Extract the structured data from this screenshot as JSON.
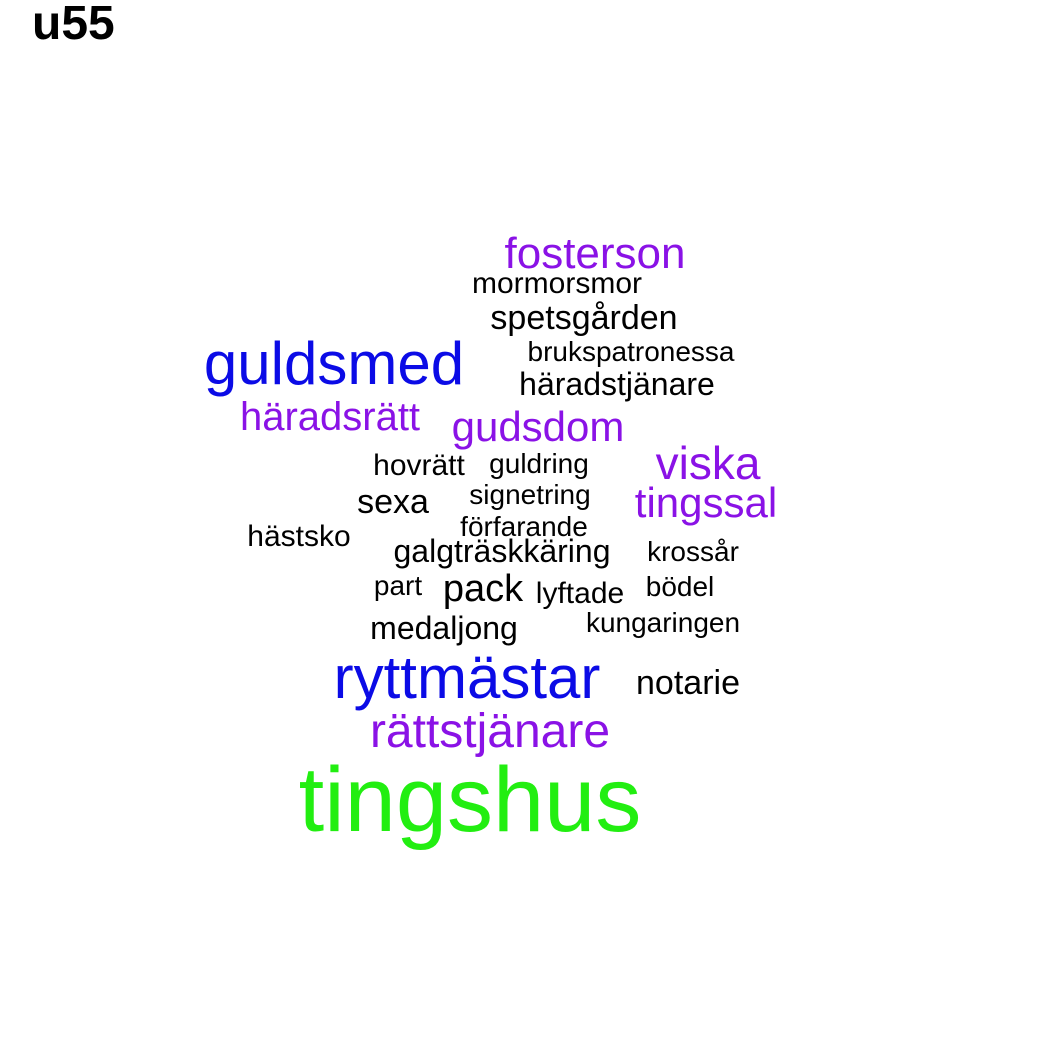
{
  "title": "u55",
  "palette": {
    "black": "#000000",
    "purple": "#8a12e6",
    "blue": "#0b0be6",
    "green": "#22ee11"
  },
  "words": [
    {
      "text": "fosterson",
      "color": "purple"
    },
    {
      "text": "mormorsmor",
      "color": "black"
    },
    {
      "text": "spetsgården",
      "color": "black"
    },
    {
      "text": "guldsmed",
      "color": "blue"
    },
    {
      "text": "brukspatronessa",
      "color": "black"
    },
    {
      "text": "häradstjänare",
      "color": "black"
    },
    {
      "text": "häradsrätt",
      "color": "purple"
    },
    {
      "text": "gudsdom",
      "color": "purple"
    },
    {
      "text": "hovrätt",
      "color": "black"
    },
    {
      "text": "guldring",
      "color": "black"
    },
    {
      "text": "viska",
      "color": "purple"
    },
    {
      "text": "sexa",
      "color": "black"
    },
    {
      "text": "signetring",
      "color": "black"
    },
    {
      "text": "tingssal",
      "color": "purple"
    },
    {
      "text": "förfarande",
      "color": "black"
    },
    {
      "text": "hästsko",
      "color": "black"
    },
    {
      "text": "galgträskkäring",
      "color": "black"
    },
    {
      "text": "krossår",
      "color": "black"
    },
    {
      "text": "part",
      "color": "black"
    },
    {
      "text": "pack",
      "color": "black"
    },
    {
      "text": "lyftade",
      "color": "black"
    },
    {
      "text": "bödel",
      "color": "black"
    },
    {
      "text": "medaljong",
      "color": "black"
    },
    {
      "text": "kungaringen",
      "color": "black"
    },
    {
      "text": "ryttmästar",
      "color": "blue"
    },
    {
      "text": "notarie",
      "color": "black"
    },
    {
      "text": "rättstjänare",
      "color": "purple"
    },
    {
      "text": "tingshus",
      "color": "green"
    }
  ]
}
